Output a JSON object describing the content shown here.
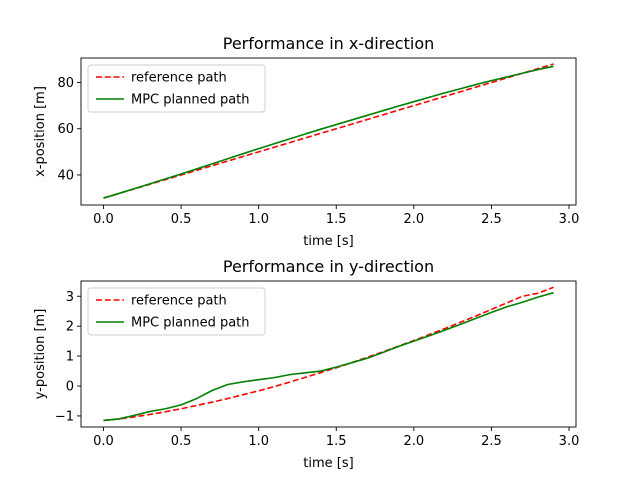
{
  "chart_data": [
    {
      "type": "line",
      "title": "Performance in x-direction",
      "xlabel": "time [s]",
      "ylabel": "x-position [m]",
      "xlim": [
        -0.145,
        3.045
      ],
      "ylim": [
        27.0,
        90.6
      ],
      "xticks": [
        0.0,
        0.5,
        1.0,
        1.5,
        2.0,
        2.5,
        3.0
      ],
      "xtick_labels": [
        "0.0",
        "0.5",
        "1.0",
        "1.5",
        "2.0",
        "2.5",
        "3.0"
      ],
      "yticks": [
        40,
        60,
        80
      ],
      "ytick_labels": [
        "40",
        "60",
        "80"
      ],
      "grid": false,
      "legend_position": "upper-left",
      "series": [
        {
          "name": "reference path",
          "color": "#ff0000",
          "dash": "dashed",
          "x": [
            0.0,
            0.1,
            0.2,
            0.3,
            0.4,
            0.5,
            0.6,
            0.7,
            0.8,
            0.9,
            1.0,
            1.1,
            1.2,
            1.3,
            1.4,
            1.5,
            1.6,
            1.7,
            1.8,
            1.9,
            2.0,
            2.1,
            2.2,
            2.3,
            2.4,
            2.5,
            2.6,
            2.7,
            2.8,
            2.9
          ],
          "y": [
            30.0,
            32.0,
            34.0,
            36.0,
            38.0,
            40.0,
            42.0,
            44.0,
            46.0,
            48.0,
            50.0,
            52.0,
            54.0,
            56.0,
            58.0,
            60.0,
            62.0,
            64.0,
            66.0,
            68.0,
            70.0,
            72.0,
            74.0,
            76.0,
            78.0,
            80.0,
            82.0,
            84.0,
            86.0,
            88.0
          ]
        },
        {
          "name": "MPC planned path",
          "color": "#008000",
          "dash": "solid",
          "x": [
            0.0,
            0.1,
            0.2,
            0.3,
            0.4,
            0.5,
            0.6,
            0.7,
            0.8,
            0.9,
            1.0,
            1.1,
            1.2,
            1.3,
            1.4,
            1.5,
            1.6,
            1.7,
            1.8,
            1.9,
            2.0,
            2.1,
            2.2,
            2.3,
            2.4,
            2.5,
            2.6,
            2.7,
            2.8,
            2.9
          ],
          "y": [
            30.0,
            32.0,
            34.1,
            36.2,
            38.3,
            40.4,
            42.6,
            44.8,
            47.0,
            49.2,
            51.4,
            53.5,
            55.6,
            57.7,
            59.8,
            61.8,
            63.8,
            65.8,
            67.8,
            69.8,
            71.7,
            73.6,
            75.5,
            77.3,
            79.1,
            80.8,
            82.4,
            84.0,
            85.6,
            87.0
          ]
        }
      ]
    },
    {
      "type": "line",
      "title": "Performance in y-direction",
      "xlabel": "time [s]",
      "ylabel": "y-position [m]",
      "xlim": [
        -0.145,
        3.045
      ],
      "ylim": [
        -1.37,
        3.51
      ],
      "xticks": [
        0.0,
        0.5,
        1.0,
        1.5,
        2.0,
        2.5,
        3.0
      ],
      "xtick_labels": [
        "0.0",
        "0.5",
        "1.0",
        "1.5",
        "2.0",
        "2.5",
        "3.0"
      ],
      "yticks": [
        -1,
        0,
        1,
        2,
        3
      ],
      "ytick_labels": [
        "−1",
        "0",
        "1",
        "2",
        "3"
      ],
      "grid": false,
      "legend_position": "upper-left",
      "series": [
        {
          "name": "reference path",
          "color": "#ff0000",
          "dash": "dashed",
          "x": [
            0.0,
            0.1,
            0.2,
            0.3,
            0.4,
            0.5,
            0.6,
            0.7,
            0.8,
            0.9,
            1.0,
            1.1,
            1.2,
            1.3,
            1.4,
            1.5,
            1.6,
            1.7,
            1.8,
            1.9,
            2.0,
            2.1,
            2.2,
            2.3,
            2.4,
            2.5,
            2.6,
            2.7,
            2.8,
            2.9
          ],
          "y": [
            -1.15,
            -1.1,
            -1.03,
            -0.95,
            -0.86,
            -0.76,
            -0.65,
            -0.54,
            -0.42,
            -0.29,
            -0.16,
            -0.02,
            0.13,
            0.29,
            0.45,
            0.61,
            0.78,
            0.96,
            1.14,
            1.33,
            1.52,
            1.72,
            1.92,
            2.13,
            2.34,
            2.56,
            2.78,
            3.0,
            3.1,
            3.3
          ]
        },
        {
          "name": "MPC planned path",
          "color": "#008000",
          "dash": "solid",
          "x": [
            0.0,
            0.1,
            0.2,
            0.3,
            0.4,
            0.5,
            0.6,
            0.7,
            0.8,
            0.9,
            1.0,
            1.1,
            1.2,
            1.3,
            1.4,
            1.5,
            1.6,
            1.7,
            1.8,
            1.9,
            2.0,
            2.1,
            2.2,
            2.3,
            2.4,
            2.5,
            2.6,
            2.7,
            2.8,
            2.9
          ],
          "y": [
            -1.15,
            -1.1,
            -0.98,
            -0.85,
            -0.76,
            -0.63,
            -0.42,
            -0.15,
            0.05,
            0.14,
            0.21,
            0.28,
            0.38,
            0.44,
            0.5,
            0.63,
            0.78,
            0.93,
            1.12,
            1.32,
            1.5,
            1.68,
            1.87,
            2.06,
            2.26,
            2.46,
            2.65,
            2.8,
            2.97,
            3.12
          ]
        }
      ]
    }
  ]
}
